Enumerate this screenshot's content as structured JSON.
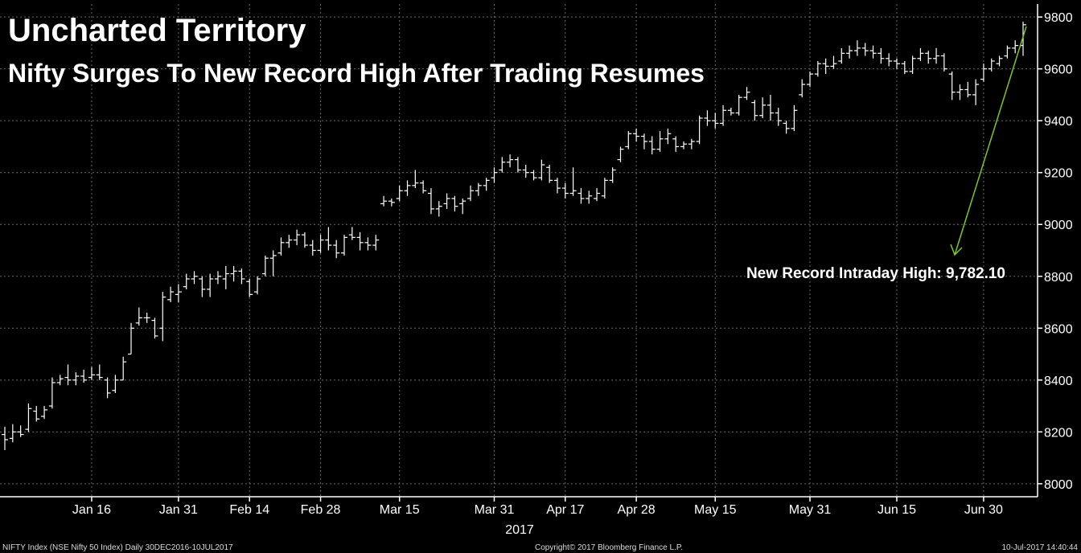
{
  "chart_data": {
    "type": "ohlc",
    "title": "Uncharted Territory",
    "subtitle": "Nifty Surges To New Record High After Trading Resumes",
    "ylim": [
      7950,
      9850
    ],
    "y_ticks": [
      "8000",
      "8200",
      "8400",
      "8600",
      "8800",
      "9000",
      "9200",
      "9400",
      "9600",
      "9800"
    ],
    "x_ticks": [
      {
        "label": "Jan 16",
        "i": 11
      },
      {
        "label": "Jan 31",
        "i": 22
      },
      {
        "label": "Feb 14",
        "i": 31
      },
      {
        "label": "Feb 28",
        "i": 40
      },
      {
        "label": "Mar 15",
        "i": 50
      },
      {
        "label": "Mar 31",
        "i": 62
      },
      {
        "label": "Apr 17",
        "i": 71
      },
      {
        "label": "Apr 28",
        "i": 80
      },
      {
        "label": "May 15",
        "i": 90
      },
      {
        "label": "May 31",
        "i": 102
      },
      {
        "label": "Jun 15",
        "i": 113
      },
      {
        "label": "Jun 30",
        "i": 124
      }
    ],
    "year_label": "2017",
    "grid": true,
    "series": [
      {
        "values": [
          {
            "i": 0,
            "o": 8190,
            "h": 8220,
            "l": 8130,
            "c": 8170
          },
          {
            "i": 1,
            "o": 8175,
            "h": 8230,
            "l": 8160,
            "c": 8200
          },
          {
            "i": 2,
            "o": 8200,
            "h": 8225,
            "l": 8180,
            "c": 8190
          },
          {
            "i": 3,
            "o": 8210,
            "h": 8310,
            "l": 8200,
            "c": 8290
          },
          {
            "i": 4,
            "o": 8280,
            "h": 8300,
            "l": 8240,
            "c": 8250
          },
          {
            "i": 5,
            "o": 8260,
            "h": 8300,
            "l": 8250,
            "c": 8285
          },
          {
            "i": 6,
            "o": 8300,
            "h": 8410,
            "l": 8290,
            "c": 8390
          },
          {
            "i": 7,
            "o": 8390,
            "h": 8420,
            "l": 8380,
            "c": 8405
          },
          {
            "i": 8,
            "o": 8410,
            "h": 8460,
            "l": 8380,
            "c": 8400
          },
          {
            "i": 9,
            "o": 8400,
            "h": 8430,
            "l": 8380,
            "c": 8415
          },
          {
            "i": 10,
            "o": 8415,
            "h": 8440,
            "l": 8390,
            "c": 8400
          },
          {
            "i": 11,
            "o": 8410,
            "h": 8450,
            "l": 8400,
            "c": 8420
          },
          {
            "i": 12,
            "o": 8420,
            "h": 8460,
            "l": 8400,
            "c": 8410
          },
          {
            "i": 13,
            "o": 8400,
            "h": 8410,
            "l": 8330,
            "c": 8350
          },
          {
            "i": 14,
            "o": 8360,
            "h": 8420,
            "l": 8350,
            "c": 8400
          },
          {
            "i": 15,
            "o": 8400,
            "h": 8490,
            "l": 8400,
            "c": 8470
          },
          {
            "i": 16,
            "o": 8500,
            "h": 8620,
            "l": 8500,
            "c": 8600
          },
          {
            "i": 17,
            "o": 8620,
            "h": 8680,
            "l": 8610,
            "c": 8640
          },
          {
            "i": 18,
            "o": 8640,
            "h": 8660,
            "l": 8620,
            "c": 8640
          },
          {
            "i": 19,
            "o": 8630,
            "h": 8640,
            "l": 8560,
            "c": 8570
          },
          {
            "i": 20,
            "o": 8600,
            "h": 8740,
            "l": 8550,
            "c": 8720
          },
          {
            "i": 21,
            "o": 8710,
            "h": 8760,
            "l": 8700,
            "c": 8740
          },
          {
            "i": 22,
            "o": 8730,
            "h": 8770,
            "l": 8700,
            "c": 8740
          },
          {
            "i": 23,
            "o": 8760,
            "h": 8810,
            "l": 8750,
            "c": 8790
          },
          {
            "i": 24,
            "o": 8790,
            "h": 8820,
            "l": 8770,
            "c": 8800
          },
          {
            "i": 25,
            "o": 8790,
            "h": 8800,
            "l": 8720,
            "c": 8750
          },
          {
            "i": 26,
            "o": 8750,
            "h": 8810,
            "l": 8720,
            "c": 8790
          },
          {
            "i": 27,
            "o": 8790,
            "h": 8820,
            "l": 8770,
            "c": 8800
          },
          {
            "i": 28,
            "o": 8790,
            "h": 8840,
            "l": 8750,
            "c": 8810
          },
          {
            "i": 29,
            "o": 8810,
            "h": 8840,
            "l": 8780,
            "c": 8820
          },
          {
            "i": 30,
            "o": 8820,
            "h": 8830,
            "l": 8770,
            "c": 8790
          },
          {
            "i": 31,
            "o": 8780,
            "h": 8790,
            "l": 8720,
            "c": 8730
          },
          {
            "i": 32,
            "o": 8740,
            "h": 8800,
            "l": 8730,
            "c": 8790
          },
          {
            "i": 33,
            "o": 8810,
            "h": 8880,
            "l": 8800,
            "c": 8870
          },
          {
            "i": 34,
            "o": 8870,
            "h": 8900,
            "l": 8800,
            "c": 8880
          },
          {
            "i": 35,
            "o": 8890,
            "h": 8950,
            "l": 8880,
            "c": 8930
          },
          {
            "i": 36,
            "o": 8930,
            "h": 8960,
            "l": 8910,
            "c": 8940
          },
          {
            "i": 37,
            "o": 8940,
            "h": 8980,
            "l": 8920,
            "c": 8960
          },
          {
            "i": 38,
            "o": 8960,
            "h": 8970,
            "l": 8910,
            "c": 8920
          },
          {
            "i": 39,
            "o": 8920,
            "h": 8940,
            "l": 8880,
            "c": 8900
          },
          {
            "i": 40,
            "o": 8900,
            "h": 8960,
            "l": 8890,
            "c": 8940
          },
          {
            "i": 41,
            "o": 8940,
            "h": 8990,
            "l": 8900,
            "c": 8920
          },
          {
            "i": 42,
            "o": 8920,
            "h": 8940,
            "l": 8870,
            "c": 8890
          },
          {
            "i": 43,
            "o": 8890,
            "h": 8960,
            "l": 8880,
            "c": 8950
          },
          {
            "i": 44,
            "o": 8960,
            "h": 8990,
            "l": 8940,
            "c": 8950
          },
          {
            "i": 45,
            "o": 8950,
            "h": 8970,
            "l": 8900,
            "c": 8930
          },
          {
            "i": 46,
            "o": 8930,
            "h": 8950,
            "l": 8900,
            "c": 8920
          },
          {
            "i": 47,
            "o": 8920,
            "h": 8960,
            "l": 8900,
            "c": 8940
          },
          {
            "i": 48,
            "o": 9080,
            "h": 9110,
            "l": 9070,
            "c": 9090
          },
          {
            "i": 49,
            "o": 9090,
            "h": 9100,
            "l": 9070,
            "c": 9085
          },
          {
            "i": 50,
            "o": 9100,
            "h": 9150,
            "l": 9090,
            "c": 9130
          },
          {
            "i": 51,
            "o": 9130,
            "h": 9170,
            "l": 9110,
            "c": 9150
          },
          {
            "i": 52,
            "o": 9150,
            "h": 9210,
            "l": 9140,
            "c": 9160
          },
          {
            "i": 53,
            "o": 9160,
            "h": 9170,
            "l": 9120,
            "c": 9130
          },
          {
            "i": 54,
            "o": 9120,
            "h": 9140,
            "l": 9040,
            "c": 9060
          },
          {
            "i": 55,
            "o": 9060,
            "h": 9090,
            "l": 9030,
            "c": 9070
          },
          {
            "i": 56,
            "o": 9080,
            "h": 9120,
            "l": 9060,
            "c": 9100
          },
          {
            "i": 57,
            "o": 9100,
            "h": 9110,
            "l": 9050,
            "c": 9070
          },
          {
            "i": 58,
            "o": 9080,
            "h": 9100,
            "l": 9040,
            "c": 9090
          },
          {
            "i": 59,
            "o": 9100,
            "h": 9150,
            "l": 9090,
            "c": 9130
          },
          {
            "i": 60,
            "o": 9130,
            "h": 9160,
            "l": 9110,
            "c": 9150
          },
          {
            "i": 61,
            "o": 9150,
            "h": 9180,
            "l": 9130,
            "c": 9170
          },
          {
            "i": 62,
            "o": 9180,
            "h": 9220,
            "l": 9160,
            "c": 9200
          },
          {
            "i": 63,
            "o": 9210,
            "h": 9260,
            "l": 9200,
            "c": 9240
          },
          {
            "i": 64,
            "o": 9240,
            "h": 9270,
            "l": 9220,
            "c": 9250
          },
          {
            "i": 65,
            "o": 9250,
            "h": 9260,
            "l": 9200,
            "c": 9210
          },
          {
            "i": 66,
            "o": 9210,
            "h": 9230,
            "l": 9180,
            "c": 9200
          },
          {
            "i": 67,
            "o": 9200,
            "h": 9210,
            "l": 9170,
            "c": 9180
          },
          {
            "i": 68,
            "o": 9180,
            "h": 9250,
            "l": 9170,
            "c": 9230
          },
          {
            "i": 69,
            "o": 9220,
            "h": 9230,
            "l": 9160,
            "c": 9170
          },
          {
            "i": 70,
            "o": 9170,
            "h": 9180,
            "l": 9120,
            "c": 9140
          },
          {
            "i": 71,
            "o": 9140,
            "h": 9160,
            "l": 9100,
            "c": 9120
          },
          {
            "i": 72,
            "o": 9120,
            "h": 9220,
            "l": 9110,
            "c": 9130
          },
          {
            "i": 73,
            "o": 9120,
            "h": 9140,
            "l": 9080,
            "c": 9100
          },
          {
            "i": 74,
            "o": 9100,
            "h": 9130,
            "l": 9080,
            "c": 9110
          },
          {
            "i": 75,
            "o": 9100,
            "h": 9140,
            "l": 9090,
            "c": 9120
          },
          {
            "i": 76,
            "o": 9110,
            "h": 9180,
            "l": 9100,
            "c": 9170
          },
          {
            "i": 77,
            "o": 9170,
            "h": 9220,
            "l": 9160,
            "c": 9210
          },
          {
            "i": 78,
            "o": 9250,
            "h": 9300,
            "l": 9240,
            "c": 9290
          },
          {
            "i": 79,
            "o": 9300,
            "h": 9360,
            "l": 9290,
            "c": 9350
          },
          {
            "i": 80,
            "o": 9350,
            "h": 9370,
            "l": 9320,
            "c": 9340
          },
          {
            "i": 81,
            "o": 9340,
            "h": 9350,
            "l": 9290,
            "c": 9320
          },
          {
            "i": 82,
            "o": 9320,
            "h": 9340,
            "l": 9270,
            "c": 9290
          },
          {
            "i": 83,
            "o": 9290,
            "h": 9360,
            "l": 9280,
            "c": 9330
          },
          {
            "i": 84,
            "o": 9330,
            "h": 9370,
            "l": 9310,
            "c": 9350
          },
          {
            "i": 85,
            "o": 9330,
            "h": 9340,
            "l": 9280,
            "c": 9300
          },
          {
            "i": 86,
            "o": 9300,
            "h": 9320,
            "l": 9290,
            "c": 9310
          },
          {
            "i": 87,
            "o": 9310,
            "h": 9330,
            "l": 9290,
            "c": 9320
          },
          {
            "i": 88,
            "o": 9320,
            "h": 9420,
            "l": 9310,
            "c": 9410
          },
          {
            "i": 89,
            "o": 9410,
            "h": 9440,
            "l": 9380,
            "c": 9400
          },
          {
            "i": 90,
            "o": 9400,
            "h": 9430,
            "l": 9370,
            "c": 9390
          },
          {
            "i": 91,
            "o": 9390,
            "h": 9460,
            "l": 9380,
            "c": 9440
          },
          {
            "i": 92,
            "o": 9440,
            "h": 9450,
            "l": 9420,
            "c": 9430
          },
          {
            "i": 93,
            "o": 9430,
            "h": 9500,
            "l": 9420,
            "c": 9490
          },
          {
            "i": 94,
            "o": 9490,
            "h": 9530,
            "l": 9480,
            "c": 9510
          },
          {
            "i": 95,
            "o": 9470,
            "h": 9480,
            "l": 9400,
            "c": 9420
          },
          {
            "i": 96,
            "o": 9420,
            "h": 9490,
            "l": 9410,
            "c": 9460
          },
          {
            "i": 97,
            "o": 9460,
            "h": 9500,
            "l": 9400,
            "c": 9430
          },
          {
            "i": 98,
            "o": 9430,
            "h": 9450,
            "l": 9380,
            "c": 9400
          },
          {
            "i": 99,
            "o": 9390,
            "h": 9400,
            "l": 9350,
            "c": 9370
          },
          {
            "i": 100,
            "o": 9370,
            "h": 9460,
            "l": 9360,
            "c": 9440
          },
          {
            "i": 101,
            "o": 9500,
            "h": 9560,
            "l": 9490,
            "c": 9540
          },
          {
            "i": 102,
            "o": 9540,
            "h": 9590,
            "l": 9530,
            "c": 9580
          },
          {
            "i": 103,
            "o": 9580,
            "h": 9630,
            "l": 9570,
            "c": 9620
          },
          {
            "i": 104,
            "o": 9620,
            "h": 9640,
            "l": 9580,
            "c": 9610
          },
          {
            "i": 105,
            "o": 9610,
            "h": 9650,
            "l": 9600,
            "c": 9620
          },
          {
            "i": 106,
            "o": 9630,
            "h": 9680,
            "l": 9620,
            "c": 9660
          },
          {
            "i": 107,
            "o": 9660,
            "h": 9690,
            "l": 9640,
            "c": 9670
          },
          {
            "i": 108,
            "o": 9670,
            "h": 9710,
            "l": 9650,
            "c": 9680
          },
          {
            "i": 109,
            "o": 9680,
            "h": 9700,
            "l": 9650,
            "c": 9670
          },
          {
            "i": 110,
            "o": 9670,
            "h": 9690,
            "l": 9640,
            "c": 9660
          },
          {
            "i": 111,
            "o": 9660,
            "h": 9680,
            "l": 9620,
            "c": 9640
          },
          {
            "i": 112,
            "o": 9640,
            "h": 9660,
            "l": 9610,
            "c": 9630
          },
          {
            "i": 113,
            "o": 9630,
            "h": 9640,
            "l": 9600,
            "c": 9620
          },
          {
            "i": 114,
            "o": 9620,
            "h": 9630,
            "l": 9580,
            "c": 9590
          },
          {
            "i": 115,
            "o": 9590,
            "h": 9650,
            "l": 9580,
            "c": 9640
          },
          {
            "i": 116,
            "o": 9640,
            "h": 9680,
            "l": 9630,
            "c": 9660
          },
          {
            "i": 117,
            "o": 9660,
            "h": 9670,
            "l": 9620,
            "c": 9640
          },
          {
            "i": 118,
            "o": 9640,
            "h": 9680,
            "l": 9620,
            "c": 9650
          },
          {
            "i": 119,
            "o": 9650,
            "h": 9660,
            "l": 9590,
            "c": 9600
          },
          {
            "i": 120,
            "o": 9580,
            "h": 9590,
            "l": 9480,
            "c": 9510
          },
          {
            "i": 121,
            "o": 9510,
            "h": 9540,
            "l": 9480,
            "c": 9520
          },
          {
            "i": 122,
            "o": 9520,
            "h": 9550,
            "l": 9490,
            "c": 9500
          },
          {
            "i": 123,
            "o": 9500,
            "h": 9560,
            "l": 9460,
            "c": 9540
          },
          {
            "i": 124,
            "o": 9560,
            "h": 9620,
            "l": 9550,
            "c": 9600
          },
          {
            "i": 125,
            "o": 9600,
            "h": 9640,
            "l": 9590,
            "c": 9630
          },
          {
            "i": 126,
            "o": 9620,
            "h": 9650,
            "l": 9610,
            "c": 9640
          },
          {
            "i": 127,
            "o": 9650,
            "h": 9690,
            "l": 9640,
            "c": 9680
          },
          {
            "i": 128,
            "o": 9680,
            "h": 9710,
            "l": 9660,
            "c": 9690
          },
          {
            "i": 129,
            "o": 9690,
            "h": 9782.1,
            "l": 9650,
            "c": 9770
          }
        ]
      }
    ],
    "annotation": {
      "text": "New Record Intraday High: 9,782.10",
      "value": 9782.1,
      "color": "#7dc62a"
    }
  },
  "footer": {
    "left": "NIFTY Index (NSE Nifty 50 Index)  Daily 30DEC2016-10JUL2017",
    "center": "Copyright© 2017 Bloomberg Finance L.P.",
    "right": "10-Jul-2017 14:40:44"
  },
  "colors": {
    "background": "#000000",
    "bars": "#ffffff",
    "grid": "#6a6a6a",
    "accent": "#7dc62a"
  }
}
